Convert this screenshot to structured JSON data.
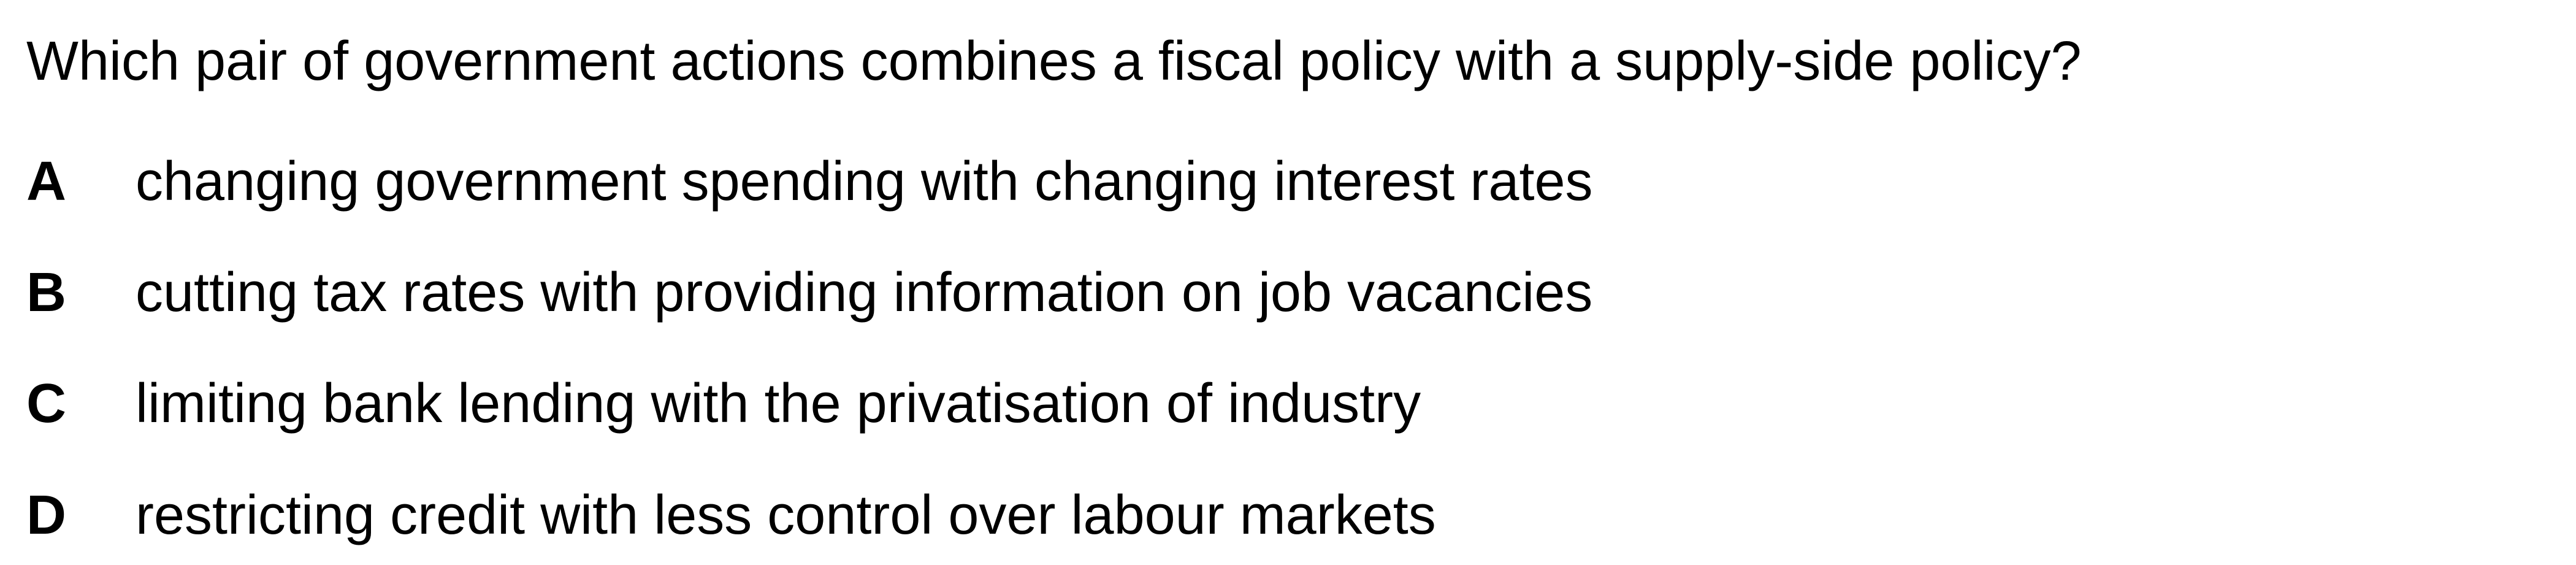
{
  "question": {
    "text": "Which pair of government actions combines a fiscal policy with a supply-side policy?"
  },
  "options": [
    {
      "letter": "A",
      "text": "changing government spending with changing interest rates"
    },
    {
      "letter": "B",
      "text": "cutting tax rates with providing information on job vacancies"
    },
    {
      "letter": "C",
      "text": "limiting bank lending with the privatisation of industry"
    },
    {
      "letter": "D",
      "text": "restricting credit with less control over labour markets"
    }
  ]
}
